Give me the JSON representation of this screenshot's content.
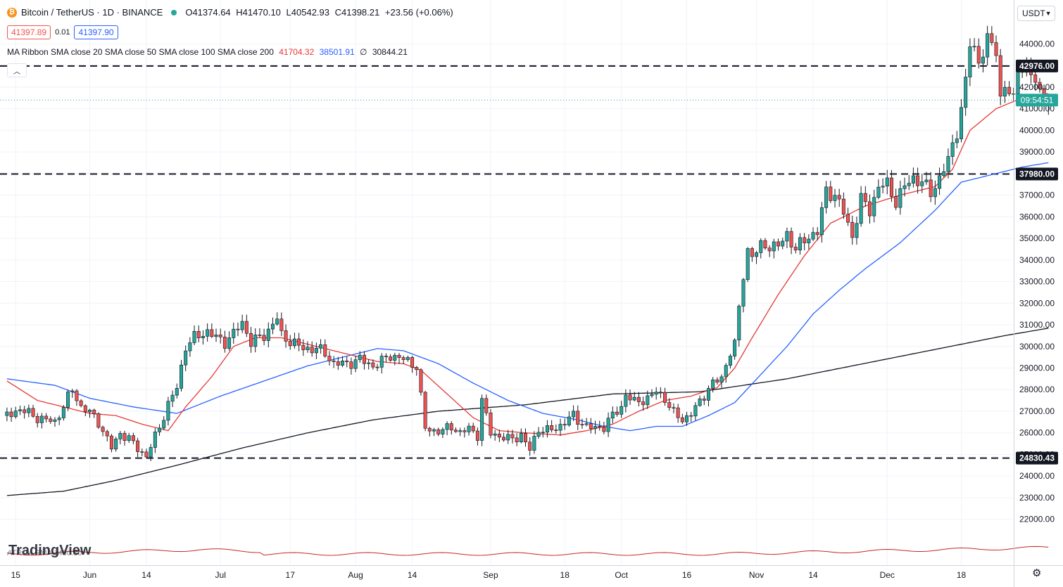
{
  "header": {
    "symbol": "Bitcoin / TetherUS · 1D · BINANCE",
    "open": "O41374.64",
    "high": "H41470.10",
    "low": "L40542.93",
    "close": "C41398.21",
    "change": "+23.56 (+0.06%)",
    "bid": "41397.89",
    "spread": "0.01",
    "ask": "41397.90",
    "currency": "USDT"
  },
  "indicator": {
    "label": "MA Ribbon SMA close 20 SMA close 50 SMA close 100 SMA close 200",
    "v1": "41704.32",
    "v2": "38501.91",
    "v3": "∅",
    "v4": "30844.21"
  },
  "atr_label": "ATR 14 RMA 1450.80",
  "watermark": "TradingView",
  "colors": {
    "up": "#26a69a",
    "down": "#ef5350",
    "sma20": "#e53935",
    "sma50": "#2962ff",
    "sma200": "#131722",
    "label_bg": "#131722",
    "current_price_bg": "#26a69a"
  },
  "chart_data": {
    "type": "candlestick",
    "y_axis": {
      "range": [
        21000,
        45000
      ],
      "ticks": [
        "44000.00",
        "43000.00",
        "42000.00",
        "41000.00",
        "40000.00",
        "39000.00",
        "38000.00",
        "37000.00",
        "36000.00",
        "35000.00",
        "34000.00",
        "33000.00",
        "32000.00",
        "31000.00",
        "30000.00",
        "29000.00",
        "28000.00",
        "27000.00",
        "26000.00",
        "25000.00",
        "24000.00",
        "23000.00",
        "22000.00"
      ],
      "tick_values": [
        44000,
        43000,
        42000,
        41000,
        40000,
        39000,
        38000,
        37000,
        36000,
        35000,
        34000,
        33000,
        32000,
        31000,
        30000,
        29000,
        28000,
        27000,
        26000,
        25000,
        24000,
        23000,
        22000
      ]
    },
    "x_axis": {
      "labels": [
        "15",
        "Jun",
        "14",
        "Jul",
        "17",
        "Aug",
        "14",
        "Sep",
        "18",
        "Oct",
        "16",
        "Nov",
        "14",
        "Dec",
        "18"
      ],
      "label_days": [
        -17,
        0,
        13,
        30,
        46,
        61,
        74,
        92,
        109,
        122,
        137,
        153,
        166,
        183,
        200
      ]
    },
    "horizontal_levels": [
      {
        "value": 42976.0,
        "label": "42976.00"
      },
      {
        "value": 37980.0,
        "label": "37980.00"
      },
      {
        "value": 24830.43,
        "label": "24830.43"
      }
    ],
    "current_price": {
      "value": 41398.21,
      "label": "09:54:51"
    },
    "anchors_close": [
      [
        -19,
        26800
      ],
      [
        -16,
        27100
      ],
      [
        -12,
        26700
      ],
      [
        -8,
        26500
      ],
      [
        -4,
        28000
      ],
      [
        -2,
        27200
      ],
      [
        0,
        26950
      ],
      [
        2,
        26500
      ],
      [
        5,
        25300
      ],
      [
        7,
        26000
      ],
      [
        9,
        25700
      ],
      [
        13,
        24900
      ],
      [
        16,
        26300
      ],
      [
        18,
        27300
      ],
      [
        20,
        28100
      ],
      [
        22,
        30000
      ],
      [
        24,
        30400
      ],
      [
        27,
        30700
      ],
      [
        29,
        30400
      ],
      [
        31,
        30200
      ],
      [
        33,
        30600
      ],
      [
        35,
        31100
      ],
      [
        37,
        30200
      ],
      [
        40,
        30500
      ],
      [
        43,
        31300
      ],
      [
        44,
        30500
      ],
      [
        46,
        30250
      ],
      [
        49,
        29900
      ],
      [
        52,
        29900
      ],
      [
        54,
        29700
      ],
      [
        56,
        29200
      ],
      [
        59,
        29200
      ],
      [
        62,
        29400
      ],
      [
        63,
        29300
      ],
      [
        65,
        29100
      ],
      [
        67,
        29300
      ],
      [
        69,
        29600
      ],
      [
        72,
        29400
      ],
      [
        74,
        29200
      ],
      [
        75,
        29100
      ],
      [
        77,
        26200
      ],
      [
        79,
        26100
      ],
      [
        81,
        26100
      ],
      [
        83,
        26300
      ],
      [
        85,
        26000
      ],
      [
        87,
        26200
      ],
      [
        89,
        25900
      ],
      [
        90,
        27500
      ],
      [
        92,
        26000
      ],
      [
        96,
        25700
      ],
      [
        98,
        25800
      ],
      [
        99,
        25900
      ],
      [
        101,
        25200
      ],
      [
        103,
        26200
      ],
      [
        105,
        26100
      ],
      [
        107,
        26200
      ],
      [
        109,
        26500
      ],
      [
        111,
        26800
      ],
      [
        112,
        26600
      ],
      [
        114,
        26300
      ],
      [
        116,
        26200
      ],
      [
        118,
        26300
      ],
      [
        120,
        26800
      ],
      [
        122,
        27200
      ],
      [
        123,
        27800
      ],
      [
        125,
        27400
      ],
      [
        128,
        27600
      ],
      [
        130,
        27900
      ],
      [
        132,
        27600
      ],
      [
        134,
        26900
      ],
      [
        136,
        26600
      ],
      [
        138,
        26900
      ],
      [
        140,
        27400
      ],
      [
        142,
        28100
      ],
      [
        143,
        28300
      ],
      [
        145,
        28500
      ],
      [
        147,
        29800
      ],
      [
        148,
        30100
      ],
      [
        150,
        33300
      ],
      [
        151,
        34500
      ],
      [
        152,
        34200
      ],
      [
        154,
        34600
      ],
      [
        156,
        34700
      ],
      [
        158,
        34600
      ],
      [
        160,
        35200
      ],
      [
        162,
        34500
      ],
      [
        165,
        35100
      ],
      [
        167,
        35300
      ],
      [
        169,
        37200
      ],
      [
        171,
        37000
      ],
      [
        173,
        36200
      ],
      [
        175,
        35100
      ],
      [
        177,
        36800
      ],
      [
        179,
        36300
      ],
      [
        181,
        37400
      ],
      [
        183,
        37500
      ],
      [
        185,
        36700
      ],
      [
        187,
        37400
      ],
      [
        189,
        37800
      ],
      [
        191,
        37600
      ],
      [
        193,
        37100
      ],
      [
        195,
        37800
      ],
      [
        197,
        38600
      ],
      [
        199,
        40000
      ],
      [
        200,
        41000
      ],
      [
        201,
        42200
      ],
      [
        202,
        44000
      ],
      [
        203,
        43800
      ],
      [
        204,
        43200
      ],
      [
        206,
        44100
      ],
      [
        208,
        43800
      ],
      [
        209,
        41500
      ],
      [
        210,
        42000
      ],
      [
        212,
        41400
      ],
      [
        213,
        43100
      ],
      [
        215,
        42800
      ],
      [
        217,
        42300
      ],
      [
        219,
        41400
      ],
      [
        220,
        41398
      ]
    ],
    "anchors_sma20": [
      [
        -19,
        28400
      ],
      [
        -12,
        27500
      ],
      [
        0,
        26900
      ],
      [
        6,
        26800
      ],
      [
        12,
        26400
      ],
      [
        18,
        26100
      ],
      [
        22,
        27200
      ],
      [
        28,
        28600
      ],
      [
        33,
        30000
      ],
      [
        38,
        30400
      ],
      [
        44,
        30400
      ],
      [
        50,
        30100
      ],
      [
        58,
        29700
      ],
      [
        66,
        29300
      ],
      [
        72,
        29200
      ],
      [
        76,
        28900
      ],
      [
        82,
        27800
      ],
      [
        88,
        26700
      ],
      [
        94,
        26100
      ],
      [
        100,
        26000
      ],
      [
        108,
        25900
      ],
      [
        114,
        26100
      ],
      [
        120,
        26400
      ],
      [
        126,
        27000
      ],
      [
        132,
        27500
      ],
      [
        138,
        27700
      ],
      [
        144,
        28100
      ],
      [
        148,
        29000
      ],
      [
        152,
        30400
      ],
      [
        158,
        32400
      ],
      [
        164,
        34200
      ],
      [
        170,
        35700
      ],
      [
        178,
        36500
      ],
      [
        186,
        37000
      ],
      [
        194,
        37400
      ],
      [
        198,
        38200
      ],
      [
        202,
        40000
      ],
      [
        208,
        41000
      ],
      [
        214,
        41500
      ],
      [
        220,
        41704
      ]
    ],
    "anchors_sma50": [
      [
        -19,
        28500
      ],
      [
        -8,
        28200
      ],
      [
        0,
        27600
      ],
      [
        10,
        27200
      ],
      [
        20,
        26900
      ],
      [
        30,
        27700
      ],
      [
        40,
        28400
      ],
      [
        50,
        29100
      ],
      [
        60,
        29600
      ],
      [
        66,
        29900
      ],
      [
        72,
        29800
      ],
      [
        80,
        29200
      ],
      [
        88,
        28300
      ],
      [
        96,
        27500
      ],
      [
        104,
        26900
      ],
      [
        112,
        26600
      ],
      [
        118,
        26300
      ],
      [
        124,
        26100
      ],
      [
        130,
        26300
      ],
      [
        136,
        26300
      ],
      [
        142,
        26800
      ],
      [
        148,
        27400
      ],
      [
        154,
        28700
      ],
      [
        160,
        30000
      ],
      [
        166,
        31500
      ],
      [
        172,
        32600
      ],
      [
        178,
        33600
      ],
      [
        186,
        34800
      ],
      [
        194,
        36300
      ],
      [
        200,
        37600
      ],
      [
        208,
        38000
      ],
      [
        214,
        38300
      ],
      [
        220,
        38502
      ]
    ],
    "anchors_sma200": [
      [
        -19,
        23100
      ],
      [
        -6,
        23300
      ],
      [
        6,
        23800
      ],
      [
        20,
        24500
      ],
      [
        35,
        25300
      ],
      [
        50,
        26000
      ],
      [
        65,
        26600
      ],
      [
        80,
        27000
      ],
      [
        100,
        27300
      ],
      [
        120,
        27800
      ],
      [
        140,
        27900
      ],
      [
        150,
        28200
      ],
      [
        160,
        28500
      ],
      [
        170,
        28900
      ],
      [
        180,
        29300
      ],
      [
        190,
        29700
      ],
      [
        200,
        30100
      ],
      [
        210,
        30500
      ],
      [
        220,
        30844
      ]
    ]
  }
}
